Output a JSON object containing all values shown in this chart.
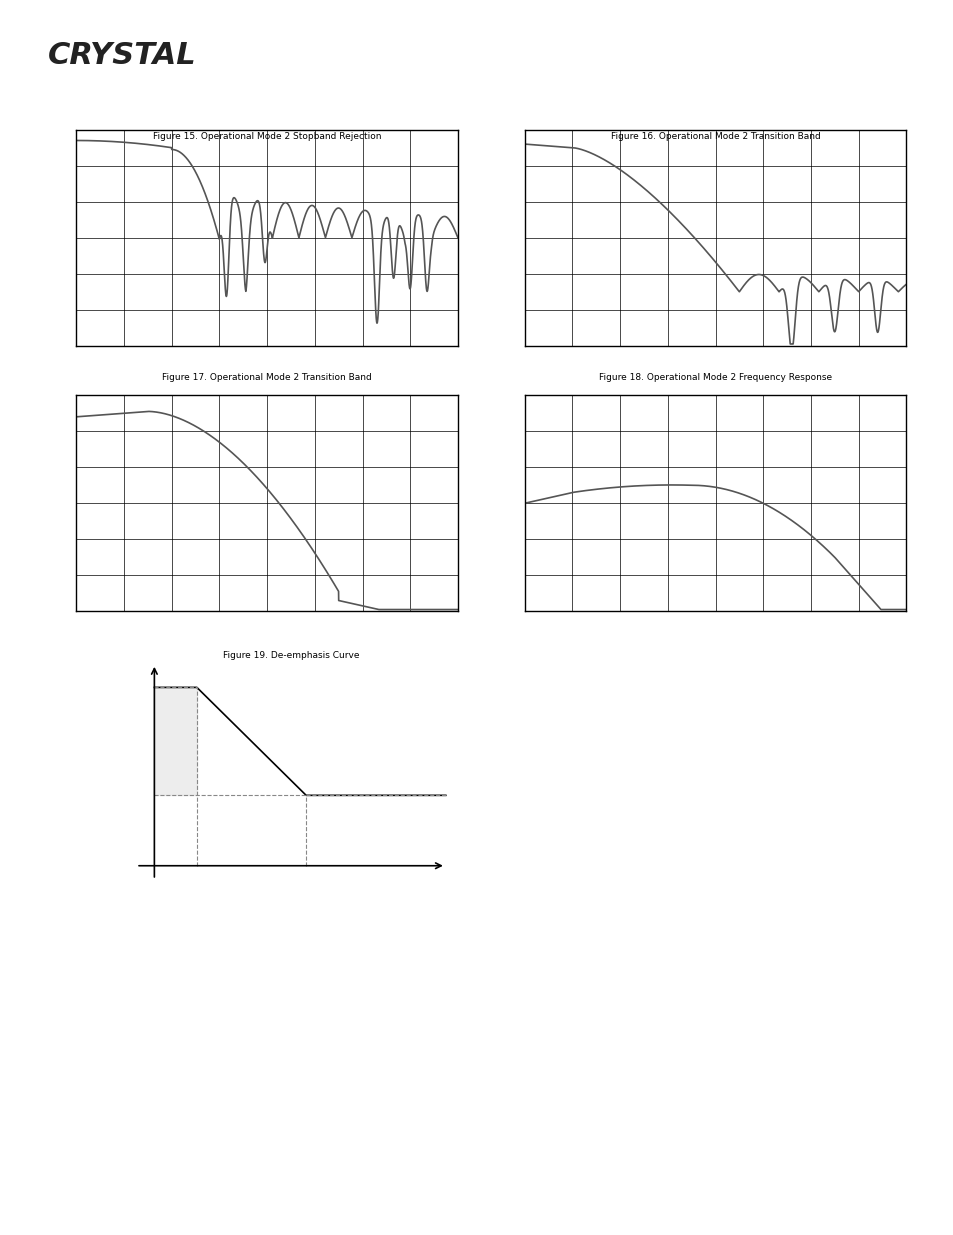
{
  "page_bg": "#ffffff",
  "header_bar_color": "#808080",
  "logo_text": "CRYSTAL",
  "plots": [
    {
      "id": "fig15",
      "row": 0,
      "col": 0,
      "title": "Figure 15. Operational Mode 2 Stopband Rejection",
      "grid_rows": 6,
      "grid_cols": 8,
      "curve_type": "stopband_rejection_wide"
    },
    {
      "id": "fig16",
      "row": 0,
      "col": 1,
      "title": "Figure 16. Operational Mode 2 Transition Band",
      "grid_rows": 6,
      "grid_cols": 8,
      "curve_type": "transition_band_1"
    },
    {
      "id": "fig17",
      "row": 1,
      "col": 0,
      "title": "Figure 17. Operational Mode 2 Transition Band",
      "grid_rows": 6,
      "grid_cols": 8,
      "curve_type": "transition_band_2"
    },
    {
      "id": "fig18",
      "row": 1,
      "col": 1,
      "title": "Figure 18. Operational Mode 2 Frequency Response",
      "grid_rows": 6,
      "grid_cols": 8,
      "curve_type": "freq_response"
    }
  ],
  "deemphasis": {
    "title": "Figure 19. De-emphasis Curve",
    "line_color": "#000000",
    "dashed_color": "#888888",
    "highlight_color": "#cccccc"
  },
  "curve_color": "#555555",
  "grid_color": "#000000",
  "line_width": 1.2
}
